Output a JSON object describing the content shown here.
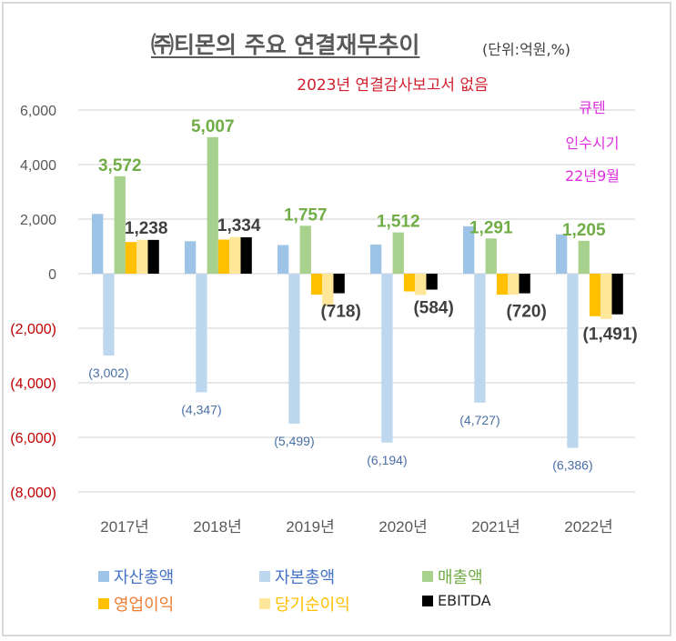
{
  "title": "㈜티몬의 주요 연결재무추이",
  "unit_label": "(단위:억원,%)",
  "subtitle": "2023년 연결감사보고서 없음",
  "annotation": [
    "큐텐",
    "인수시기",
    "22년9월"
  ],
  "colors": {
    "asset": "#9dc3e6",
    "equity": "#bdd7ee",
    "sales": "#a9d18e",
    "operating": "#ffc000",
    "net": "#ffe699",
    "ebitda": "#000000",
    "negative_tick": "#c00000",
    "annotation": "#e02ee0",
    "subtitle": "#d0202e"
  },
  "chart_data": {
    "type": "bar",
    "title": "㈜티몬의 주요 연결재무추이",
    "subtitle": "2023년 연결감사보고서 없음",
    "unit": "억원",
    "xlabel": "",
    "ylabel": "",
    "ylim": [
      -8000,
      6000
    ],
    "yticks": [
      6000,
      4000,
      2000,
      0,
      -2000,
      -4000,
      -6000,
      -8000
    ],
    "ytick_labels": [
      "6,000",
      "4,000",
      "2,000",
      "0",
      "(2,000)",
      "(4,000)",
      "(6,000)",
      "(8,000)"
    ],
    "grid": true,
    "legend_position": "bottom",
    "categories": [
      "2017년",
      "2018년",
      "2019년",
      "2020년",
      "2021년",
      "2022년"
    ],
    "series": [
      {
        "key": "asset",
        "name": "자산총액",
        "values": [
          2190,
          1190,
          1050,
          1070,
          1740,
          1440
        ],
        "labels": [
          null,
          null,
          null,
          null,
          null,
          null
        ]
      },
      {
        "key": "equity",
        "name": "자본총액",
        "values": [
          -3002,
          -4347,
          -5499,
          -6194,
          -4727,
          -6386
        ],
        "labels": [
          "(3,002)",
          "(4,347)",
          "(5,499)",
          "(6,194)",
          "(4,727)",
          "(6,386)"
        ]
      },
      {
        "key": "sales",
        "name": "매출액",
        "values": [
          3572,
          5007,
          1757,
          1512,
          1291,
          1205
        ],
        "labels": [
          "3,572",
          "5,007",
          "1,757",
          "1,512",
          "1,291",
          "1,205"
        ]
      },
      {
        "key": "operating",
        "name": "영업이익",
        "values": [
          1160,
          1250,
          -770,
          -650,
          -770,
          -1560
        ],
        "labels": [
          null,
          null,
          null,
          null,
          null,
          null
        ]
      },
      {
        "key": "net",
        "name": "당기순이익",
        "values": [
          1240,
          1340,
          -1190,
          -780,
          -770,
          -1660
        ],
        "labels": [
          null,
          null,
          null,
          null,
          null,
          null
        ]
      },
      {
        "key": "ebitda",
        "name": "EBITDA",
        "values": [
          1238,
          1334,
          -718,
          -584,
          -720,
          -1491
        ],
        "labels": [
          "1,238",
          "1,334",
          "(718)",
          "(584)",
          "(720)",
          "(1,491)"
        ]
      }
    ]
  },
  "legend": [
    {
      "key": "asset",
      "label": "자산총액",
      "text_color": "#4472c4"
    },
    {
      "key": "equity",
      "label": "자본총액",
      "text_color": "#4472c4"
    },
    {
      "key": "sales",
      "label": "매출액",
      "text_color": "#70ad47"
    },
    {
      "key": "operating",
      "label": "영업이익",
      "text_color": "#ed7d31"
    },
    {
      "key": "net",
      "label": "당기순이익",
      "text_color": "#ffc000"
    },
    {
      "key": "ebitda",
      "label": "EBITDA",
      "text_color": "#262626"
    }
  ]
}
